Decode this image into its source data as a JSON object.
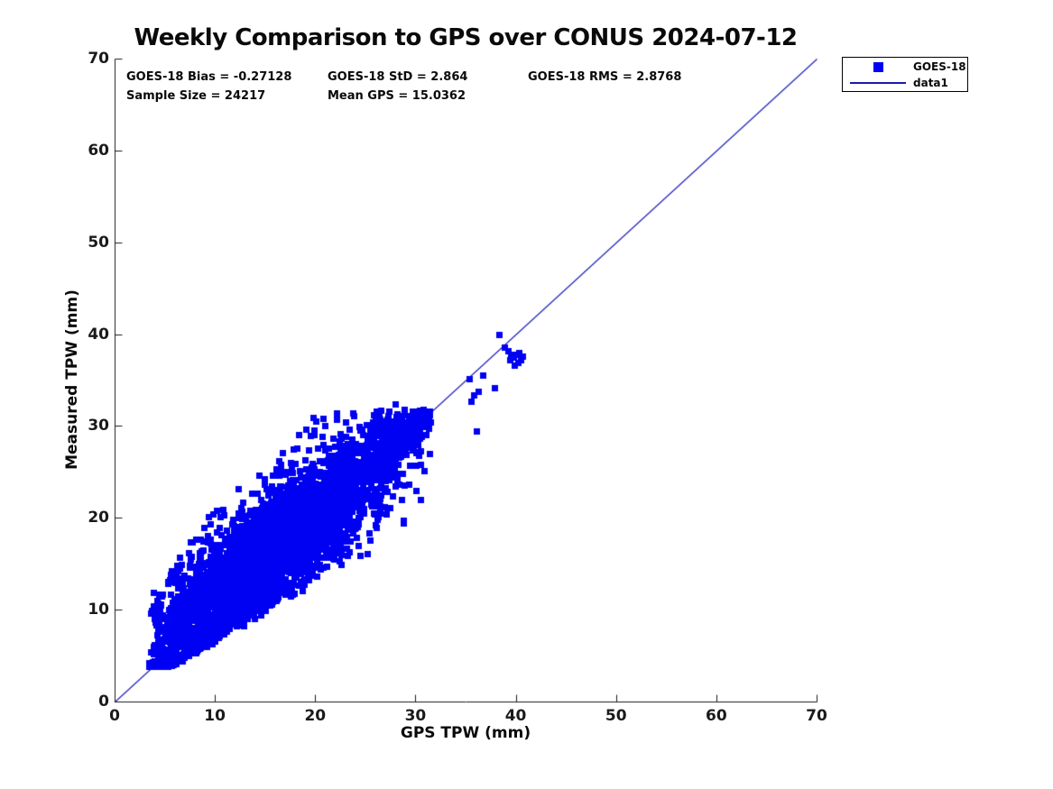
{
  "figure": {
    "background": "#ffffff",
    "axis_color": "#1a1a1a",
    "text_color": "#0a0a0a"
  },
  "chart_data": {
    "type": "scatter",
    "title": "Weekly Comparison to GPS over CONUS 2024-07-12",
    "xlabel": "GPS TPW (mm)",
    "ylabel": "Measured TPW (mm)",
    "xlim": [
      0,
      70
    ],
    "ylim": [
      0,
      70
    ],
    "x_ticks": [
      0,
      10,
      20,
      30,
      40,
      50,
      60,
      70
    ],
    "y_ticks": [
      0,
      10,
      20,
      30,
      40,
      50,
      60,
      70
    ],
    "grid": false,
    "annotations": {
      "bias_label": "GOES-18 Bias = -0.27128",
      "std_label": "GOES-18 StD = 2.864",
      "rms_label": "GOES-18 RMS = 2.8768",
      "sample_label": "Sample Size = 24217",
      "mean_label": "Mean GPS = 15.0362",
      "bias": -0.27128,
      "std": 2.864,
      "rms": 2.8768,
      "sample_size": 24217,
      "mean_gps": 15.0362
    },
    "legend": {
      "position": "top-right",
      "entries": [
        {
          "label": "GOES-18",
          "marker": "square",
          "color": "#0000f2"
        },
        {
          "label": "data1",
          "marker": "line",
          "color": "#1a1ab0"
        }
      ]
    },
    "identity_line": {
      "name": "data1",
      "from": [
        0,
        0
      ],
      "to": [
        70,
        70
      ],
      "color": "#2020bb"
    },
    "series": [
      {
        "name": "GOES-18",
        "marker": "square",
        "color": "#0000f2",
        "marker_px": 7,
        "summary": {
          "n_points": 24217,
          "gps_range_mm": [
            3.4,
            40.7
          ],
          "measured_range_mm": [
            3.8,
            40.0
          ],
          "dense_core_gps": [
            6,
            26
          ],
          "relation": "y ≈ x, scatter std ≈ 2.86 mm, slight negative bias"
        },
        "cloud_model": {
          "seed": 7,
          "n_core": 3600,
          "x_min": 3.4,
          "x_max": 31.5,
          "x_skew": 1.2,
          "noise_std": 3.0,
          "tilt_base": 1.6,
          "tilt_slope": 0.13,
          "tilt_pivot": 10,
          "lower_frac": 0.33,
          "upper_base": 3.0,
          "upper_frac": 0.9,
          "upper_max": 9.8,
          "y_floor": 3.8,
          "y_cap": 31.8,
          "n_fringe": 320,
          "fringe_std": 4.6,
          "fringe_lower_frac": 0.36,
          "fringe_upper_base": 3.5,
          "fringe_upper_frac": 0.95,
          "fringe_upper_max": 11,
          "n_arm": 90,
          "arm_x_min": 25.0,
          "arm_x_span": 6.5,
          "arm_spread": 4.4,
          "arm_offset": -0.45,
          "n_tail": 25,
          "tail_x_min": 3.4,
          "tail_x_span": 1.2
        },
        "outliers": [
          [
            38.3,
            40.0
          ],
          [
            38.9,
            38.6
          ],
          [
            39.2,
            38.2
          ],
          [
            39.5,
            37.8
          ],
          [
            39.4,
            37.2
          ],
          [
            39.8,
            37.5
          ],
          [
            40.1,
            37.8
          ],
          [
            40.3,
            38.0
          ],
          [
            39.9,
            36.6
          ],
          [
            40.2,
            36.9
          ],
          [
            40.5,
            37.2
          ],
          [
            40.7,
            37.6
          ],
          [
            35.4,
            35.1
          ],
          [
            36.7,
            35.5
          ],
          [
            35.8,
            33.4
          ],
          [
            36.3,
            33.8
          ],
          [
            37.9,
            34.2
          ],
          [
            35.5,
            32.7
          ],
          [
            36.1,
            29.5
          ],
          [
            30.8,
            30.0
          ],
          [
            31.1,
            30.3
          ],
          [
            30.4,
            29.6
          ],
          [
            31.5,
            30.4
          ],
          [
            31.0,
            29.1
          ],
          [
            28.0,
            32.4
          ],
          [
            28.1,
            31.0
          ],
          [
            28.3,
            30.4
          ],
          [
            25.8,
            31.2
          ],
          [
            26.1,
            31.6
          ],
          [
            25.9,
            30.3
          ],
          [
            19.8,
            30.9
          ],
          [
            20.1,
            30.5
          ],
          [
            19.9,
            29.6
          ],
          [
            16.4,
            26.2
          ],
          [
            16.6,
            25.8
          ],
          [
            14.4,
            24.6
          ],
          [
            12.3,
            23.2
          ],
          [
            10.2,
            20.8
          ],
          [
            9.8,
            20.4
          ],
          [
            3.9,
            11.9
          ],
          [
            4.4,
            11.7
          ],
          [
            5.2,
            9.2
          ],
          [
            4.1,
            8.3
          ],
          [
            6.3,
            13.0
          ],
          [
            7.4,
            16.2
          ],
          [
            25.4,
            18.4
          ],
          [
            25.5,
            17.6
          ],
          [
            22.6,
            14.9
          ]
        ]
      }
    ]
  }
}
